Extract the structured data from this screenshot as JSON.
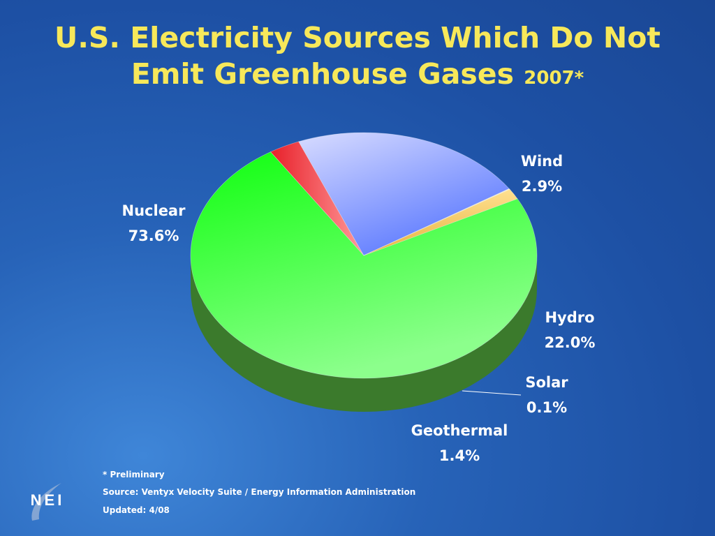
{
  "title": {
    "line1": "U.S. Electricity Sources Which Do Not",
    "line2": "Emit Greenhouse Gases",
    "year": "2007*"
  },
  "chart_data": {
    "type": "pie",
    "title": "U.S. Electricity Sources Which Do Not Emit Greenhouse Gases 2007*",
    "slices": [
      {
        "label": "Nuclear",
        "value": 73.6,
        "value_label": "73.6%",
        "color": "#37ee37"
      },
      {
        "label": "Wind",
        "value": 2.9,
        "value_label": "2.9%",
        "color": "#ef3b4a"
      },
      {
        "label": "Hydro",
        "value": 22.0,
        "value_label": "22.0%",
        "color": "#8fa6ff"
      },
      {
        "label": "Solar",
        "value": 0.1,
        "value_label": "0.1%",
        "color": "#f6e9a6"
      },
      {
        "label": "Geothermal",
        "value": 1.4,
        "value_label": "1.4%",
        "color": "#f5cd73"
      }
    ],
    "legend": "none"
  },
  "footnotes": {
    "preliminary": "* Preliminary",
    "source": "Source: Ventyx Velocity Suite  / Energy Information Administration",
    "updated": "Updated: 4/08"
  },
  "logo": {
    "text": "NEI"
  }
}
